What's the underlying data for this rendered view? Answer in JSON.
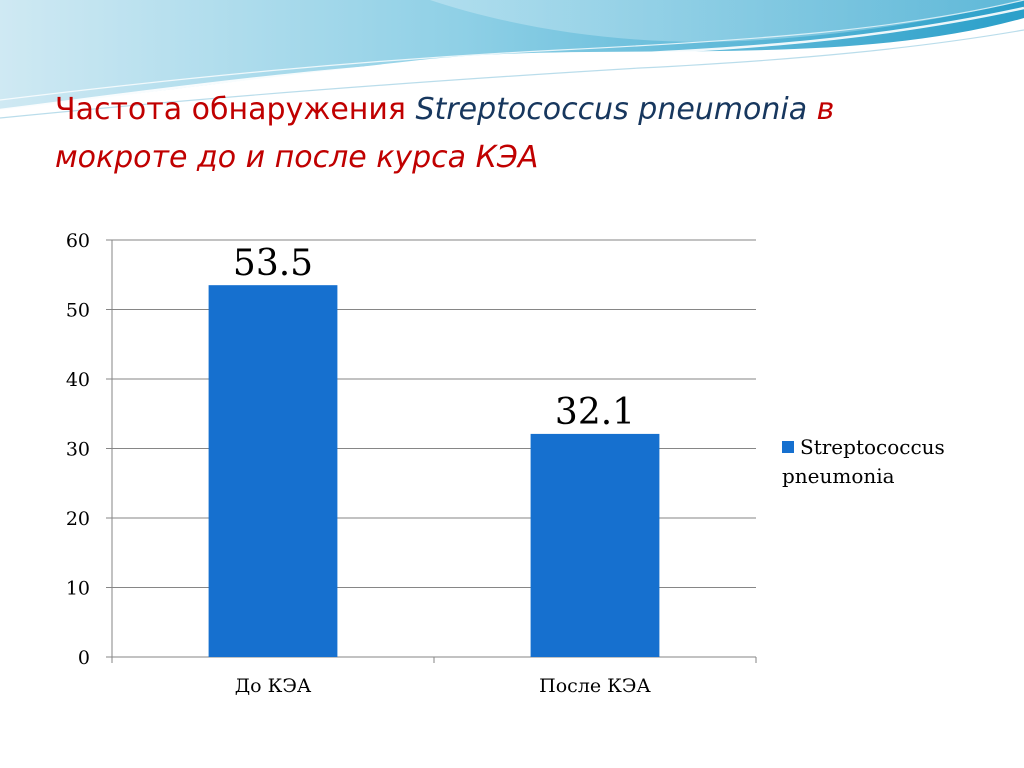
{
  "slide": {
    "title_part1": "Частота обнаружения ",
    "title_species": "Streptococcus pneumonia",
    "title_part2": " в",
    "title_line2": "мокроте до и после курса КЭА",
    "colors": {
      "title": "#c00000",
      "species": "#17375e",
      "bar": "#1670cf"
    }
  },
  "chart_data": {
    "type": "bar",
    "categories": [
      "До КЭА",
      "После КЭА"
    ],
    "series": [
      {
        "name": "Streptococcus pneumonia",
        "values": [
          53.5,
          32.1
        ],
        "color": "#1670cf"
      }
    ],
    "data_labels": [
      "53.5",
      "32.1"
    ],
    "ylim": [
      0,
      60
    ],
    "yticks": [
      0,
      10,
      20,
      30,
      40,
      50,
      60
    ],
    "grid": true,
    "legend_position": "right",
    "xlabel": "",
    "ylabel": ""
  }
}
